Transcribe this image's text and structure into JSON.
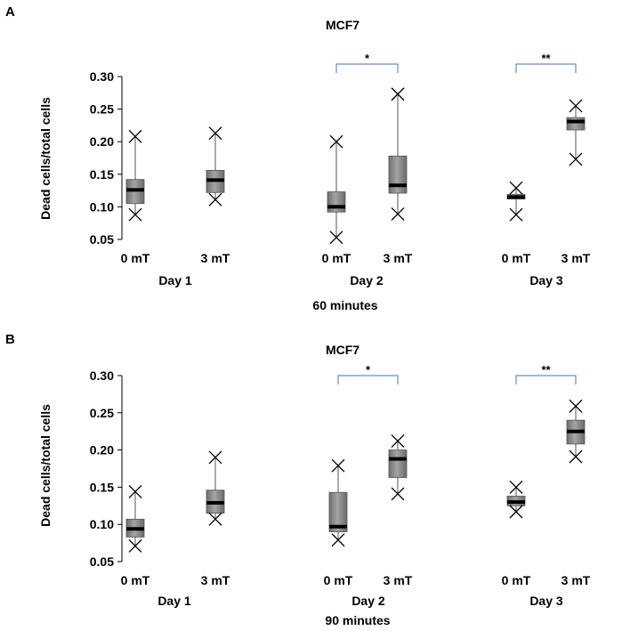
{
  "chart_data": [
    {
      "type": "box",
      "panel_letter": "A",
      "title": "MCF7",
      "ylabel": "Dead cells/total cells",
      "xlabel": "60 minutes",
      "ylim": [
        0.05,
        0.3
      ],
      "yticks": [
        "0.05",
        "0.10",
        "0.15",
        "0.20",
        "0.25",
        "0.30"
      ],
      "ytick_values": [
        0.05,
        0.1,
        0.15,
        0.2,
        0.25,
        0.3
      ],
      "groups": [
        {
          "label": "Day 1",
          "boxes": [
            {
              "label": "0 mT",
              "min": 0.088,
              "q1": 0.105,
              "median": 0.126,
              "q3": 0.142,
              "max": 0.208
            },
            {
              "label": "3 mT",
              "min": 0.111,
              "q1": 0.122,
              "median": 0.141,
              "q3": 0.156,
              "max": 0.213
            }
          ]
        },
        {
          "label": "Day 2",
          "boxes": [
            {
              "label": "0 mT",
              "min": 0.053,
              "q1": 0.092,
              "median": 0.1,
              "q3": 0.123,
              "max": 0.2
            },
            {
              "label": "3 mT",
              "min": 0.089,
              "q1": 0.121,
              "median": 0.133,
              "q3": 0.178,
              "max": 0.273
            }
          ]
        },
        {
          "label": "Day 3",
          "boxes": [
            {
              "label": "0 mT",
              "min": 0.088,
              "q1": 0.112,
              "median": 0.115,
              "q3": 0.119,
              "max": 0.129
            },
            {
              "label": "3 mT",
              "min": 0.173,
              "q1": 0.218,
              "median": 0.231,
              "q3": 0.237,
              "max": 0.255
            }
          ]
        }
      ],
      "significance": [
        {
          "group": 1,
          "label": "*"
        },
        {
          "group": 2,
          "label": "**"
        }
      ]
    },
    {
      "type": "box",
      "panel_letter": "B",
      "title": "MCF7",
      "ylabel": "Dead cells/total cells",
      "xlabel": "90 minutes",
      "ylim": [
        0.05,
        0.3
      ],
      "yticks": [
        "0.05",
        "0.10",
        "0.15",
        "0.20",
        "0.25",
        "0.30"
      ],
      "ytick_values": [
        0.05,
        0.1,
        0.15,
        0.2,
        0.25,
        0.3
      ],
      "groups": [
        {
          "label": "Day 1",
          "boxes": [
            {
              "label": "0 mT",
              "min": 0.071,
              "q1": 0.083,
              "median": 0.094,
              "q3": 0.107,
              "max": 0.144
            },
            {
              "label": "3 mT",
              "min": 0.107,
              "q1": 0.115,
              "median": 0.129,
              "q3": 0.146,
              "max": 0.19
            }
          ]
        },
        {
          "label": "Day 2",
          "boxes": [
            {
              "label": "0 mT",
              "min": 0.079,
              "q1": 0.09,
              "median": 0.097,
              "q3": 0.143,
              "max": 0.179
            },
            {
              "label": "3 mT",
              "min": 0.141,
              "q1": 0.163,
              "median": 0.188,
              "q3": 0.2,
              "max": 0.212
            }
          ]
        },
        {
          "label": "Day 3",
          "boxes": [
            {
              "label": "0 mT",
              "min": 0.117,
              "q1": 0.125,
              "median": 0.13,
              "q3": 0.138,
              "max": 0.15
            },
            {
              "label": "3 mT",
              "min": 0.191,
              "q1": 0.208,
              "median": 0.225,
              "q3": 0.24,
              "max": 0.259
            }
          ]
        }
      ],
      "significance": [
        {
          "group": 1,
          "label": "*"
        },
        {
          "group": 2,
          "label": "**"
        }
      ]
    }
  ]
}
